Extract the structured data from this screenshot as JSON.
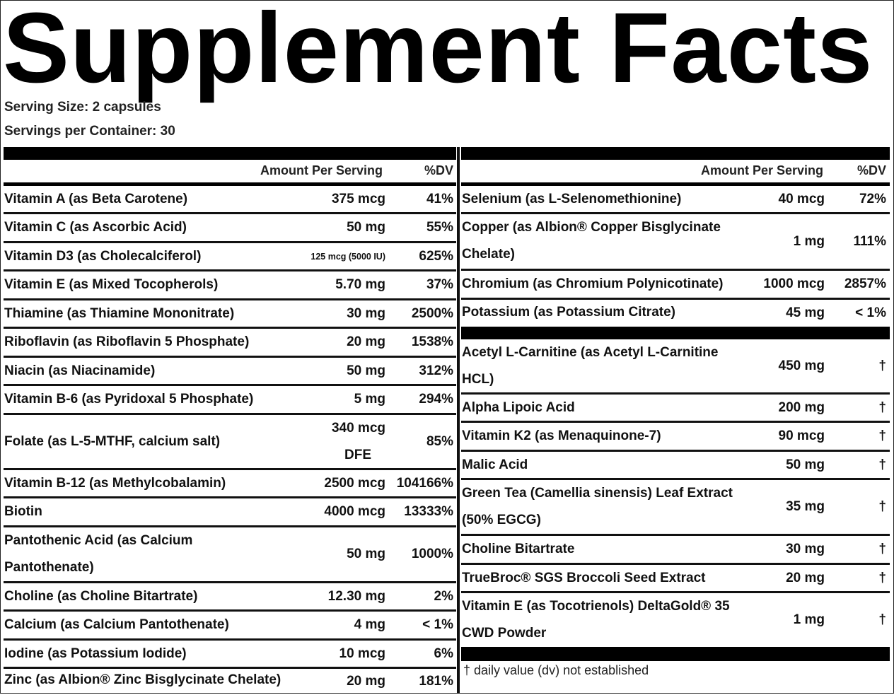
{
  "title": "Supplement Facts",
  "serving_size": "Serving Size: 2 capsules",
  "servings_per_container": "Servings per Container: 30",
  "left": {
    "header": {
      "amount": "Amount Per Serving",
      "dv": "%DV"
    },
    "rows": [
      {
        "name": [
          "Vitamin A (as Beta Carotene)"
        ],
        "amount": [
          "375 mcg"
        ],
        "dv": "41%"
      },
      {
        "name": [
          "Vitamin C (as Ascorbic Acid)"
        ],
        "amount": [
          "50 mg"
        ],
        "dv": "55%"
      },
      {
        "name": [
          "Vitamin D3 (as Cholecalciferol)"
        ],
        "amount": [
          "125 mcg (5000 IU)"
        ],
        "dv": "625%",
        "small": true
      },
      {
        "name": [
          "Vitamin E (as Mixed Tocopherols)"
        ],
        "amount": [
          "5.70 mg"
        ],
        "dv": "37%"
      },
      {
        "name": [
          "Thiamine (as Thiamine Mononitrate)"
        ],
        "amount": [
          "30 mg"
        ],
        "dv": "2500%"
      },
      {
        "name": [
          "Riboflavin (as Riboflavin 5 Phosphate)"
        ],
        "amount": [
          "20 mg"
        ],
        "dv": "1538%"
      },
      {
        "name": [
          "Niacin (as Niacinamide)"
        ],
        "amount": [
          "50 mg"
        ],
        "dv": "312%"
      },
      {
        "name": [
          "Vitamin B-6 (as Pyridoxal 5 Phosphate)"
        ],
        "amount": [
          "5 mg"
        ],
        "dv": "294%"
      },
      {
        "name": [
          "Folate (as L-5-MTHF, calcium salt)"
        ],
        "amount": [
          "340 mcg",
          "DFE"
        ],
        "dv": "85%"
      },
      {
        "name": [
          "Vitamin B-12 (as Methylcobalamin)"
        ],
        "amount": [
          "2500 mcg"
        ],
        "dv": "104166%"
      },
      {
        "name": [
          "Biotin"
        ],
        "amount": [
          "4000 mcg"
        ],
        "dv": "13333%"
      },
      {
        "name": [
          "Pantothenic Acid (as Calcium",
          "Pantothenate)"
        ],
        "amount": [
          "50 mg"
        ],
        "dv": "1000%"
      },
      {
        "name": [
          "Choline (as Choline Bitartrate)"
        ],
        "amount": [
          "12.30 mg"
        ],
        "dv": "2%"
      },
      {
        "name": [
          "Calcium (as Calcium Pantothenate)"
        ],
        "amount": [
          "4 mg"
        ],
        "dv": "< 1%"
      },
      {
        "name": [
          "Iodine (as Potassium Iodide)"
        ],
        "amount": [
          "10 mcg"
        ],
        "dv": "6%"
      },
      {
        "name": [
          "Zinc (as Albion® Zinc Bisglycinate Chelate)"
        ],
        "amount": [
          "20 mg"
        ],
        "dv": "181%"
      }
    ]
  },
  "right": {
    "header": {
      "amount": "Amount Per Serving",
      "dv": "%DV"
    },
    "rows_top": [
      {
        "name": [
          "Selenium (as L-Selenomethionine)"
        ],
        "amount": [
          "40 mcg"
        ],
        "dv": "72%"
      },
      {
        "name": [
          "Copper (as Albion® Copper Bisglycinate",
          "Chelate)"
        ],
        "amount": [
          "1 mg"
        ],
        "dv": "111%"
      },
      {
        "name": [
          "Chromium (as Chromium Polynicotinate)"
        ],
        "amount": [
          "1000 mcg"
        ],
        "dv": "2857%"
      },
      {
        "name": [
          "Potassium (as Potassium Citrate)"
        ],
        "amount": [
          "45 mg"
        ],
        "dv": "< 1%"
      }
    ],
    "rows_bottom": [
      {
        "name": [
          "Acetyl L-Carnitine (as Acetyl L-Carnitine",
          "HCL)"
        ],
        "amount": [
          "450 mg"
        ],
        "dv": "†"
      },
      {
        "name": [
          "Alpha Lipoic Acid"
        ],
        "amount": [
          "200 mg"
        ],
        "dv": "†"
      },
      {
        "name": [
          "Vitamin K2 (as Menaquinone-7)"
        ],
        "amount": [
          "90 mcg"
        ],
        "dv": "†"
      },
      {
        "name": [
          "Malic Acid"
        ],
        "amount": [
          "50 mg"
        ],
        "dv": "†"
      },
      {
        "name": [
          "Green Tea (Camellia sinensis) Leaf Extract",
          "(50% EGCG)"
        ],
        "amount": [
          "35 mg"
        ],
        "dv": "†"
      },
      {
        "name": [
          "Choline Bitartrate"
        ],
        "amount": [
          "30 mg"
        ],
        "dv": "†"
      },
      {
        "name": [
          "TrueBroc® SGS Broccoli Seed Extract"
        ],
        "amount": [
          "20 mg"
        ],
        "dv": "†"
      },
      {
        "name": [
          "Vitamin E (as Tocotrienols) DeltaGold® 35",
          "CWD Powder"
        ],
        "amount": [
          "1 mg"
        ],
        "dv": "†"
      }
    ],
    "footnote": "† daily value (dv) not established"
  }
}
